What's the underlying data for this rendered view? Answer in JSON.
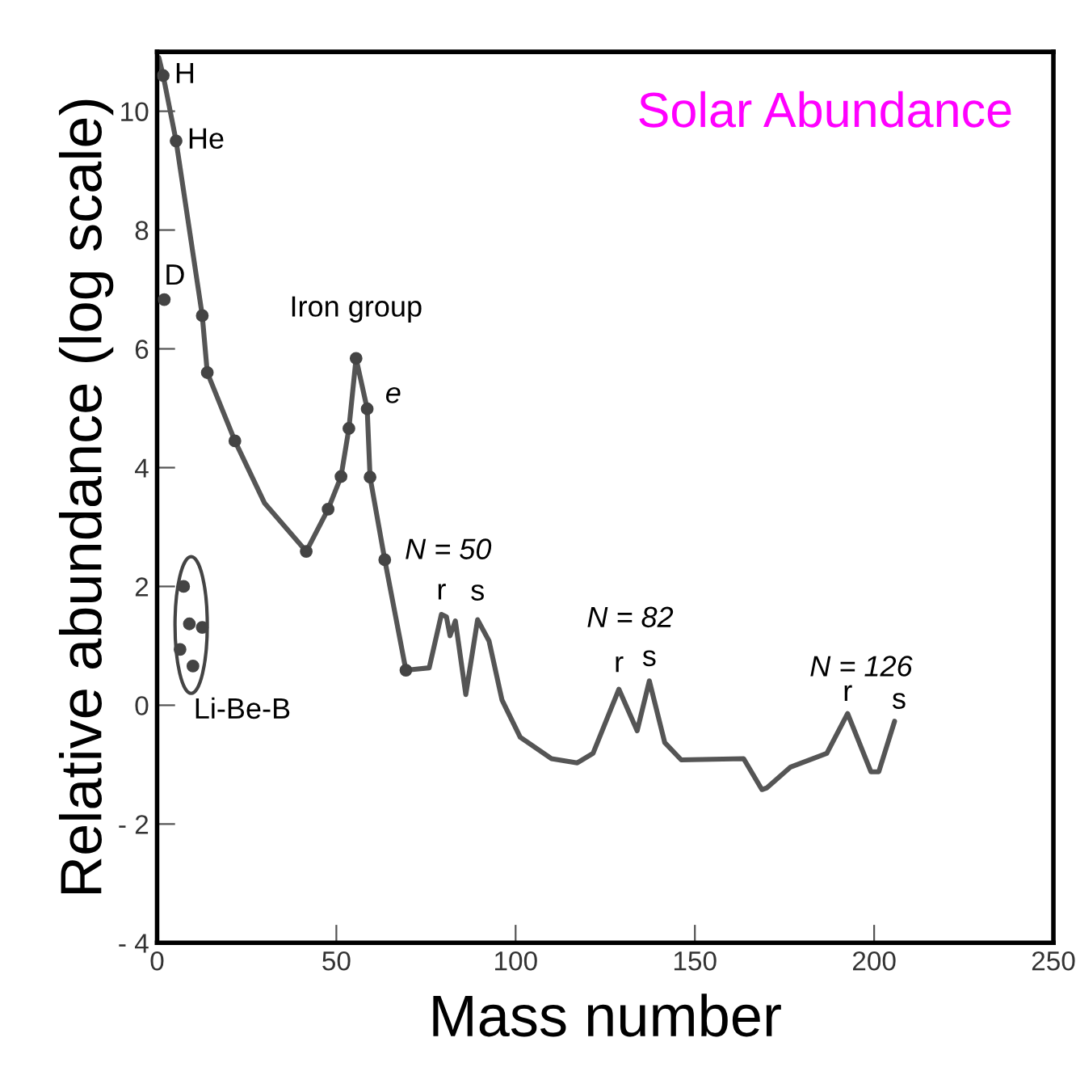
{
  "chart_data": {
    "type": "line",
    "title": "Solar Abundance",
    "xlabel": "Mass number",
    "ylabel": "Relative abundance (log scale)",
    "xlim": [
      0,
      250
    ],
    "xticks": [
      0,
      50,
      100,
      150,
      200,
      250
    ],
    "ylim": [
      -4,
      11
    ],
    "yticks": [
      {
        "value": -4,
        "label": "- 4"
      },
      {
        "value": -2,
        "label": "- 2"
      },
      0,
      2,
      4,
      6,
      8,
      10
    ],
    "grid": false,
    "legend": false,
    "series": [
      {
        "color": "#555555",
        "marker": "none",
        "x": [
          0.5,
          1.7,
          5.3,
          12.6,
          14,
          21.7,
          30,
          41.6,
          47.7,
          51.3,
          53.5,
          55.5,
          58.6,
          59.4,
          63.5,
          69.4,
          75.9,
          79.3,
          80.7,
          81.7,
          83.2,
          86.1,
          89.4,
          92.6,
          96.2,
          101.3,
          110,
          117.2,
          121.6,
          128.8,
          133.9,
          137.3,
          141.6,
          146.2,
          163.6,
          168.7,
          170.1,
          176.7,
          186.8,
          192.6,
          199.1,
          201.3,
          205.7
        ],
        "values": [
          10.9,
          10.6,
          9.5,
          6.56,
          5.6,
          4.45,
          3.4,
          2.59,
          3.3,
          3.85,
          4.66,
          5.84,
          4.99,
          3.84,
          2.45,
          0.59,
          0.63,
          1.53,
          1.49,
          1.17,
          1.42,
          0.18,
          1.44,
          1.08,
          0.09,
          -0.54,
          -0.9,
          -0.97,
          -0.81,
          0.27,
          -0.43,
          0.41,
          -0.63,
          -0.92,
          -0.9,
          -1.42,
          -1.39,
          -1.04,
          -0.81,
          -0.14,
          -1.12,
          -1.12,
          -0.27
        ]
      },
      {
        "type": "scatter",
        "color": "#444444",
        "marker": "circle",
        "x": [
          1.7,
          5.3,
          2,
          12.6,
          14,
          21.7,
          41.6,
          47.7,
          51.3,
          53.5,
          55.5,
          58.6,
          59.4,
          63.5,
          69.4,
          7.4,
          9,
          12.6,
          6.4,
          10
        ],
        "values": [
          10.6,
          9.5,
          6.83,
          6.56,
          5.6,
          4.45,
          2.59,
          3.3,
          3.85,
          4.66,
          5.84,
          4.99,
          3.84,
          2.45,
          0.59,
          2.0,
          1.37,
          1.31,
          0.94,
          0.66
        ]
      }
    ],
    "annotations": [
      {
        "text": "H",
        "x": 1.7,
        "y": 10.6
      },
      {
        "text": "He",
        "x": 5.3,
        "y": 9.5
      },
      {
        "text": "D",
        "x": 2,
        "y": 6.83
      },
      {
        "text": "Iron group",
        "x": 55.5,
        "y": 5.84
      },
      {
        "text": "e",
        "x": 58.6,
        "y": 4.99
      },
      {
        "text": "N = 50",
        "x": 79.3,
        "y": 1.53
      },
      {
        "text": "r",
        "x": 79.3,
        "y": 1.53
      },
      {
        "text": "s",
        "x": 89.4,
        "y": 1.44
      },
      {
        "text": "N = 82",
        "x": 128.8,
        "y": 0.27
      },
      {
        "text": "r",
        "x": 128.8,
        "y": 0.27
      },
      {
        "text": "s",
        "x": 137.3,
        "y": 0.41
      },
      {
        "text": "N = 126",
        "x": 192.6,
        "y": -0.14
      },
      {
        "text": "r",
        "x": 192.6,
        "y": -0.14
      },
      {
        "text": "s",
        "x": 205.7,
        "y": -0.27
      },
      {
        "text": "Li-Be-B",
        "x": 10,
        "y": 0.66
      }
    ]
  }
}
